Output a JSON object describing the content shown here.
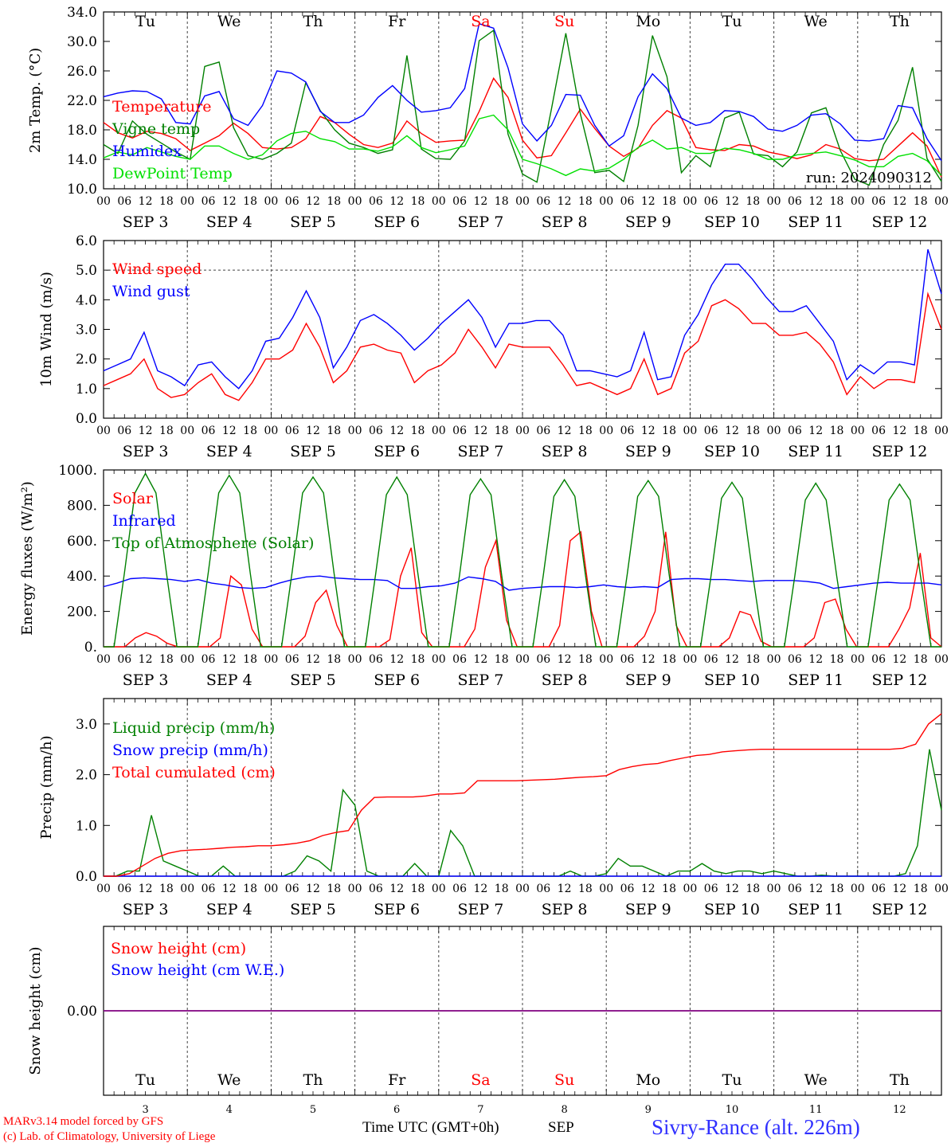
{
  "days": [
    "Tu",
    "We",
    "Th",
    "Fr",
    "Sa",
    "Su",
    "Mo",
    "Tu",
    "We",
    "Th"
  ],
  "weekend_flags": [
    false,
    false,
    false,
    false,
    true,
    true,
    false,
    false,
    false,
    false
  ],
  "dates": [
    "SEP  3",
    "SEP  4",
    "SEP  5",
    "SEP  6",
    "SEP  7",
    "SEP  8",
    "SEP  9",
    "SEP 10",
    "SEP 11",
    "SEP 12"
  ],
  "hour_ticks": [
    "00",
    "06",
    "12",
    "18"
  ],
  "bottom_day_numbers": [
    "3",
    "4",
    "5",
    "6",
    "7",
    "8",
    "9",
    "10",
    "11",
    "12"
  ],
  "colors": {
    "red": "#ff0000",
    "green": "#008000",
    "blue": "#0000ff",
    "lightgreen": "#00e000",
    "weekend": "#ff0000",
    "purple": "#800080"
  },
  "footer": {
    "model": "MARv3.14 model forced by GFS",
    "lab": "(c) Lab. of Climatology, University of Liege",
    "xlabel": "Time UTC (GMT+0h)",
    "month": "SEP",
    "station": "Sivry-Rance (alt. 226m)"
  },
  "chart_data": [
    {
      "id": "temp",
      "type": "line",
      "ylabel": "2m Temp. (°C)",
      "ylim": [
        10,
        34
      ],
      "yticks": [
        "10.0",
        "14.0",
        "18.0",
        "22.0",
        "26.0",
        "30.0",
        "34.0"
      ],
      "annotation": "run: 2024090312",
      "x_hours_step": 6,
      "series": [
        {
          "name": "Temperature",
          "color": "#ff0000",
          "values": [
            19,
            17.6,
            16.9,
            17.8,
            17.5,
            16.8,
            15.2,
            16.2,
            17.2,
            18.9,
            17.5,
            15.6,
            15.4,
            15.6,
            16.8,
            19.8,
            19.0,
            17.4,
            16.0,
            15.6,
            16.2,
            19.2,
            17.5,
            16.3,
            16.5,
            16.6,
            20.5,
            25.0,
            22.4,
            16.6,
            14.2,
            14.5,
            17.6,
            20.8,
            18.2,
            15.8,
            14.4,
            15.5,
            18.6,
            20.6,
            19.6,
            15.6,
            15.3,
            15.2,
            16.0,
            15.8,
            15.0,
            14.6,
            14.1,
            14.6,
            16.0,
            15.4,
            14.1,
            13.8,
            14.0,
            15.8,
            17.6,
            15.8,
            11.6
          ]
        },
        {
          "name": "Vigne temp",
          "color": "#008000",
          "values": [
            16,
            14.8,
            19.2,
            17.4,
            16.2,
            15.0,
            14.0,
            26.6,
            27.2,
            18.3,
            14.5,
            14.0,
            14.8,
            16.2,
            24.4,
            20.6,
            18.0,
            16.2,
            15.6,
            14.8,
            15.3,
            28.1,
            15.4,
            14.1,
            14.0,
            16.5,
            30.1,
            31.5,
            17.4,
            12.0,
            10.9,
            20.8,
            31.1,
            20.2,
            12.2,
            12.5,
            11.0,
            18.6,
            30.8,
            25.2,
            12.2,
            14.5,
            13.0,
            19.6,
            20.4,
            14.7,
            14.5,
            13.0,
            15.0,
            20.3,
            21.0,
            15.2,
            11.3,
            10.5,
            16.0,
            19.3,
            26.5,
            14.1,
            11.0
          ]
        },
        {
          "name": "Humidex",
          "color": "#0000ff",
          "values": [
            22.5,
            23.0,
            23.3,
            23.2,
            22.2,
            19.0,
            18.8,
            22.6,
            23.2,
            19.5,
            18.6,
            21.3,
            26.0,
            25.7,
            24.5,
            20.5,
            19.0,
            19.0,
            20.0,
            22.4,
            24.0,
            22.0,
            20.4,
            20.6,
            21.0,
            23.6,
            32.4,
            31.8,
            26.4,
            18.8,
            16.5,
            18.6,
            22.8,
            22.7,
            18.6,
            15.8,
            17.2,
            22.5,
            25.6,
            23.6,
            19.6,
            18.6,
            19.0,
            20.6,
            20.5,
            19.8,
            18.1,
            17.8,
            18.6,
            20.0,
            20.2,
            18.8,
            16.6,
            16.5,
            16.8,
            21.3,
            21.0,
            16.8,
            13.8
          ]
        },
        {
          "name": "DewPoint Temp",
          "color": "#00e000",
          "values": [
            14.2,
            15.0,
            14.6,
            15.6,
            15.0,
            14.4,
            14.0,
            15.8,
            15.8,
            14.8,
            14.0,
            14.6,
            16.5,
            17.5,
            17.8,
            16.8,
            16.4,
            15.4,
            15.4,
            15.1,
            15.7,
            17.2,
            15.6,
            14.9,
            15.3,
            15.8,
            19.5,
            20.0,
            18.0,
            14.0,
            13.4,
            12.7,
            11.8,
            12.7,
            12.4,
            12.8,
            14.0,
            15.6,
            16.6,
            15.4,
            15.6,
            14.8,
            14.8,
            15.5,
            15.3,
            14.8,
            14.0,
            14.0,
            14.6,
            14.8,
            15.0,
            14.5,
            13.9,
            13.0,
            13.0,
            14.4,
            14.8,
            13.8,
            11.8
          ]
        }
      ]
    },
    {
      "id": "wind",
      "type": "line",
      "ylabel": "10m Wind (m/s)",
      "ylim": [
        0,
        6
      ],
      "yticks": [
        "0.0",
        "1.0",
        "2.0",
        "3.0",
        "4.0",
        "5.0",
        "6.0"
      ],
      "ref_line": 5.0,
      "x_hours_step": 6,
      "series": [
        {
          "name": "Wind speed",
          "color": "#ff0000",
          "values": [
            1.1,
            1.3,
            1.5,
            2.0,
            1.0,
            0.7,
            0.8,
            1.2,
            1.5,
            0.8,
            0.6,
            1.2,
            2.0,
            2.0,
            2.3,
            3.2,
            2.4,
            1.2,
            1.6,
            2.4,
            2.5,
            2.3,
            2.2,
            1.2,
            1.6,
            1.8,
            2.2,
            3.0,
            2.4,
            1.7,
            2.5,
            2.4,
            2.4,
            2.4,
            1.8,
            1.1,
            1.2,
            1.0,
            0.8,
            1.0,
            2.0,
            0.8,
            1.0,
            2.2,
            2.6,
            3.8,
            4.0,
            3.7,
            3.2,
            3.2,
            2.8,
            2.8,
            2.9,
            2.5,
            1.9,
            0.8,
            1.4,
            1.0,
            1.3,
            1.3,
            1.2,
            4.2,
            3.0
          ]
        },
        {
          "name": "Wind gust",
          "color": "#0000ff",
          "values": [
            1.6,
            1.8,
            2.0,
            2.9,
            1.6,
            1.4,
            1.1,
            1.8,
            1.9,
            1.4,
            1.0,
            1.6,
            2.6,
            2.7,
            3.4,
            4.3,
            3.4,
            1.7,
            2.4,
            3.3,
            3.5,
            3.2,
            2.8,
            2.3,
            2.7,
            3.2,
            3.6,
            4.0,
            3.4,
            2.4,
            3.2,
            3.2,
            3.3,
            3.3,
            2.8,
            1.6,
            1.6,
            1.5,
            1.4,
            1.6,
            2.9,
            1.3,
            1.4,
            2.8,
            3.5,
            4.5,
            5.2,
            5.2,
            4.7,
            4.1,
            3.6,
            3.6,
            3.8,
            3.2,
            2.6,
            1.3,
            1.8,
            1.5,
            1.9,
            1.9,
            1.8,
            5.7,
            4.2
          ]
        }
      ]
    },
    {
      "id": "energy",
      "type": "line",
      "ylabel": "Energy fluxes (W/m²)",
      "ylim": [
        0,
        1000
      ],
      "yticks": [
        "0.",
        "200.",
        "400.",
        "600.",
        "800.",
        "1000."
      ],
      "x_hours_step": 3,
      "series": [
        {
          "name": "Solar",
          "color": "#ff0000",
          "values": [
            0,
            0,
            0,
            50,
            80,
            60,
            20,
            0,
            0,
            0,
            0,
            50,
            400,
            350,
            100,
            0,
            0,
            0,
            0,
            60,
            250,
            320,
            120,
            0,
            0,
            0,
            0,
            40,
            400,
            560,
            80,
            0,
            0,
            0,
            0,
            100,
            450,
            600,
            150,
            0,
            0,
            0,
            0,
            120,
            600,
            650,
            200,
            0,
            0,
            0,
            0,
            60,
            200,
            650,
            120,
            0,
            0,
            0,
            0,
            50,
            200,
            180,
            30,
            0,
            0,
            0,
            0,
            50,
            250,
            270,
            100,
            0,
            0,
            0,
            0,
            100,
            220,
            530,
            50,
            0
          ]
        },
        {
          "name": "Infrared",
          "color": "#0000ff",
          "values": [
            340,
            360,
            385,
            390,
            385,
            380,
            370,
            380,
            360,
            350,
            335,
            330,
            335,
            360,
            380,
            395,
            400,
            390,
            385,
            380,
            380,
            375,
            330,
            330,
            340,
            345,
            360,
            395,
            385,
            370,
            320,
            330,
            335,
            340,
            340,
            335,
            340,
            350,
            340,
            335,
            340,
            335,
            380,
            385,
            385,
            380,
            380,
            375,
            370,
            375,
            375,
            375,
            370,
            360,
            330,
            340,
            350,
            360,
            365,
            360,
            360,
            360,
            350
          ]
        },
        {
          "name": "Top of Atmosphere (Solar)",
          "color": "#008000",
          "values": [
            0,
            0,
            420,
            870,
            980,
            870,
            420,
            0,
            0,
            0,
            420,
            870,
            970,
            870,
            420,
            0,
            0,
            0,
            420,
            870,
            960,
            870,
            420,
            0,
            0,
            0,
            420,
            860,
            960,
            860,
            420,
            0,
            0,
            0,
            410,
            860,
            950,
            860,
            410,
            0,
            0,
            0,
            410,
            850,
            945,
            850,
            410,
            0,
            0,
            0,
            410,
            850,
            940,
            850,
            410,
            0,
            0,
            0,
            400,
            840,
            930,
            840,
            400,
            0,
            0,
            0,
            400,
            830,
            925,
            830,
            400,
            0,
            0,
            0,
            400,
            830,
            920,
            830,
            400,
            0,
            0
          ]
        }
      ]
    },
    {
      "id": "precip",
      "type": "line",
      "ylabel": "Precip (mm/h)",
      "ylim": [
        0,
        3.5
      ],
      "yticks": [
        "0.0",
        "1.0",
        "2.0",
        "3.0"
      ],
      "x_hours_step": 3,
      "series": [
        {
          "name": "Liquid precip (mm/h)",
          "color": "#008000",
          "values": [
            0,
            0,
            0.1,
            0.1,
            1.2,
            0.3,
            0.2,
            0.1,
            0,
            0,
            0.2,
            0,
            0,
            0,
            0,
            0,
            0.1,
            0.4,
            0.3,
            0.1,
            1.7,
            1.4,
            0.1,
            0,
            0,
            0,
            0.25,
            0,
            0,
            0.9,
            0.6,
            0,
            0,
            0,
            0,
            0,
            0,
            0,
            0,
            0.1,
            0,
            0,
            0.05,
            0.35,
            0.2,
            0.2,
            0.1,
            0,
            0.1,
            0.1,
            0.25,
            0.1,
            0.05,
            0.1,
            0.1,
            0.05,
            0.1,
            0.05,
            0,
            0,
            0.02,
            0,
            0,
            0,
            0,
            0,
            0,
            0.05,
            0.6,
            2.5,
            1.3
          ]
        },
        {
          "name": "Snow precip (mm/h)",
          "color": "#0000ff",
          "values": [
            0,
            0,
            0,
            0,
            0,
            0,
            0,
            0,
            0,
            0,
            0,
            0,
            0,
            0,
            0,
            0,
            0,
            0,
            0,
            0,
            0,
            0,
            0,
            0,
            0,
            0,
            0,
            0,
            0,
            0,
            0,
            0,
            0,
            0,
            0,
            0,
            0,
            0,
            0,
            0,
            0,
            0,
            0,
            0,
            0,
            0,
            0,
            0,
            0,
            0,
            0,
            0,
            0,
            0,
            0,
            0,
            0,
            0,
            0,
            0,
            0,
            0,
            0,
            0,
            0,
            0,
            0,
            0,
            0,
            0,
            0
          ]
        },
        {
          "name": "Total cumulated (cm)",
          "color": "#ff0000",
          "values": [
            0,
            0,
            0.05,
            0.2,
            0.35,
            0.45,
            0.5,
            0.52,
            0.53,
            0.55,
            0.57,
            0.58,
            0.6,
            0.6,
            0.62,
            0.65,
            0.7,
            0.8,
            0.86,
            0.9,
            1.3,
            1.55,
            1.56,
            1.56,
            1.56,
            1.58,
            1.62,
            1.62,
            1.64,
            1.88,
            1.88,
            1.88,
            1.88,
            1.89,
            1.9,
            1.91,
            1.93,
            1.95,
            1.96,
            1.98,
            2.1,
            2.16,
            2.2,
            2.22,
            2.28,
            2.33,
            2.38,
            2.4,
            2.45,
            2.47,
            2.49,
            2.5,
            2.5,
            2.5,
            2.5,
            2.5,
            2.5,
            2.5,
            2.5,
            2.5,
            2.5,
            2.5,
            2.52,
            2.6,
            3.0,
            3.2
          ]
        }
      ]
    },
    {
      "id": "snow",
      "type": "line",
      "ylabel": "Snow height (cm)",
      "ylim": [
        -1,
        1
      ],
      "yticks": [
        "0.00"
      ],
      "x_hours_step": 240,
      "series": [
        {
          "name": "Snow height (cm)",
          "color": "#ff0000",
          "values": [
            0,
            0
          ]
        },
        {
          "name": "Snow height (cm W.E.)",
          "color": "#0000ff",
          "values": [
            0,
            0
          ]
        }
      ]
    }
  ]
}
